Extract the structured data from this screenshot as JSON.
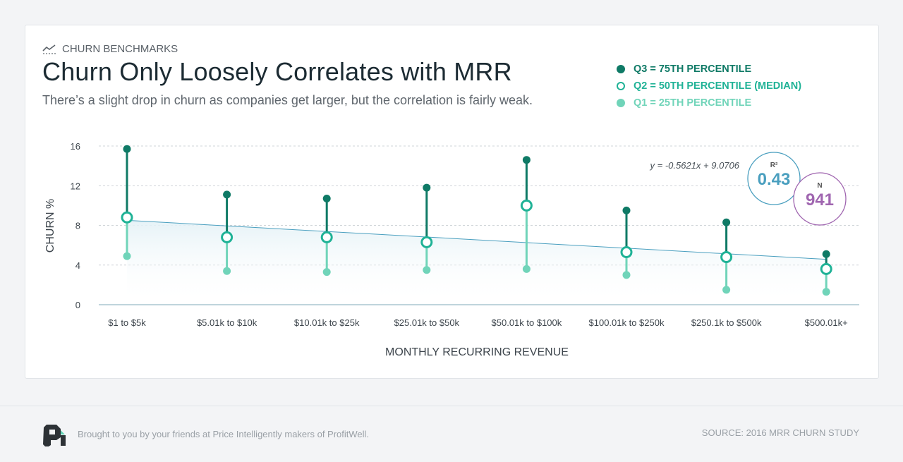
{
  "header": {
    "eyebrow": "CHURN BENCHMARKS",
    "eyebrow_icon": "line-chart-icon",
    "title": "Churn Only Loosely Correlates with MRR",
    "subtitle": "There’s a slight drop in churn as companies get larger, but the correlation is fairly weak."
  },
  "legend": [
    {
      "label": "Q3 = 75TH PERCENTILE",
      "color": "#0f7a66",
      "style": "filled"
    },
    {
      "label": "Q2 = 50TH PERCENTILE (MEDIAN)",
      "color": "#1fb296",
      "style": "hollow"
    },
    {
      "label": "Q1 = 25TH PERCENTILE",
      "color": "#70d4b9",
      "style": "filled"
    }
  ],
  "stats": {
    "equation": "y = -0.5621x + 9.0706",
    "r2_label": "R²",
    "r2_value": "0.43",
    "r2_color": "#4a9fbf",
    "n_label": "N",
    "n_value": "941",
    "n_color": "#a066b0"
  },
  "chart_data": {
    "type": "scatter",
    "xlabel": "MONTHLY RECURRING REVENUE",
    "ylabel": "CHURN %",
    "ylim": [
      0,
      16
    ],
    "yticks": [
      0,
      4,
      8,
      12,
      16
    ],
    "grid": true,
    "legend_position": "top-right",
    "categories": [
      "$1 to $5k",
      "$5.01k to $10k",
      "$10.01k to $25k",
      "$25.01k to $50k",
      "$50.01k to $100k",
      "$100.01k to $250k",
      "$250.1k to $500k",
      "$500.01k+"
    ],
    "series": [
      {
        "name": "Q3 = 75TH PERCENTILE",
        "values": [
          15.7,
          11.1,
          10.7,
          11.8,
          14.6,
          9.5,
          8.3,
          5.1
        ]
      },
      {
        "name": "Q2 = 50TH PERCENTILE (MEDIAN)",
        "values": [
          8.8,
          6.8,
          6.8,
          6.3,
          10.0,
          5.3,
          4.8,
          3.6
        ]
      },
      {
        "name": "Q1 = 25TH PERCENTILE",
        "values": [
          4.9,
          3.4,
          3.3,
          3.5,
          3.6,
          3.0,
          1.5,
          1.3
        ]
      }
    ],
    "trendline": {
      "slope": -0.5621,
      "intercept": 9.0706,
      "color": "#4a9fbf"
    }
  },
  "footer": {
    "logo_icon": "profitwell-logo-icon",
    "credit": "Brought to you by your friends at Price Intelligently makers of ProfitWell.",
    "source": "SOURCE: 2016 MRR CHURN STUDY"
  }
}
